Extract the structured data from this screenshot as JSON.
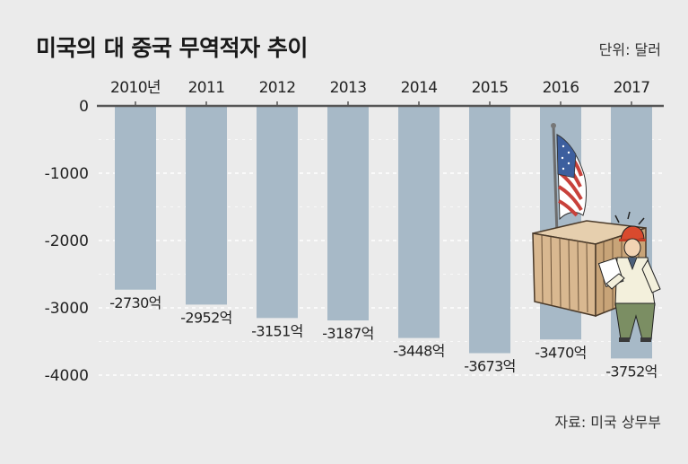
{
  "title": "미국의 대 중국 무역적자 추이",
  "unit": "단위: 달러",
  "source": "자료: 미국 상무부",
  "colors": {
    "bar": "#a7b9c7",
    "background": "#ebebeb",
    "axis": "#555555",
    "grid": "#ffffff"
  },
  "chart_data": {
    "type": "bar",
    "categories": [
      "2010년",
      "2011",
      "2012",
      "2013",
      "2014",
      "2015",
      "2016",
      "2017"
    ],
    "values": [
      -2730,
      -2952,
      -3151,
      -3187,
      -3448,
      -3673,
      -3470,
      -3752
    ],
    "data_labels": [
      "-2730억",
      "-2952억",
      "-3151억",
      "-3187억",
      "-3448억",
      "-3673억",
      "-3470억",
      "-3752억"
    ],
    "y_ticks": [
      "0",
      "-1000",
      "-2000",
      "-3000",
      "-4000"
    ],
    "ylim": [
      -4000,
      0
    ],
    "xlabel": "",
    "ylabel": "",
    "grid": true,
    "x_axis_position": "top"
  },
  "illustration": {
    "description_icon": "worker-with-flag-container-icon"
  }
}
